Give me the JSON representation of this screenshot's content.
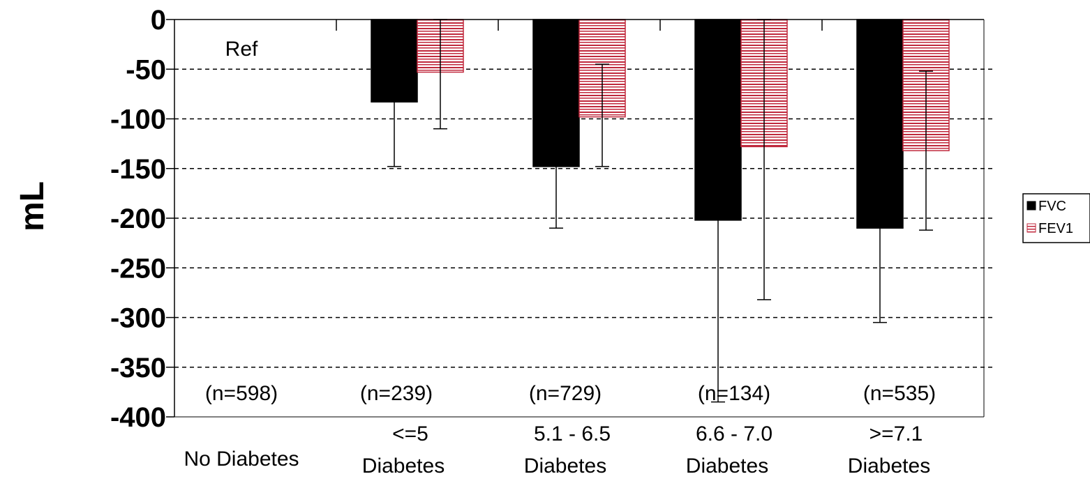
{
  "chart_data": {
    "type": "bar",
    "title": "",
    "xlabel": "",
    "ylabel": "mL",
    "ylim": [
      -400,
      0
    ],
    "yticks": [
      0,
      -50,
      -100,
      -150,
      -200,
      -250,
      -300,
      -350,
      -400
    ],
    "ytick_labels": [
      "0",
      "-50",
      "-100",
      "-150",
      "-200",
      "-250",
      "-300",
      "-350",
      "-400"
    ],
    "grid": "horizontal dashed",
    "legend_position": "right",
    "categories": [
      [
        "No Diabetes"
      ],
      [
        "<=5",
        "Diabetes"
      ],
      [
        "5.1 - 6.5",
        "Diabetes"
      ],
      [
        "6.6 - 7.0",
        "Diabetes"
      ],
      [
        ">=7.1",
        "Diabetes"
      ]
    ],
    "sample_sizes": [
      "(n=598)",
      "(n=239)",
      "(n=729)",
      "(n=134)",
      "(n=535)"
    ],
    "reference_label": "Ref",
    "series": [
      {
        "name": "FVC",
        "color": "#000000",
        "fill": "solid",
        "values": [
          0,
          -83,
          -148,
          -202,
          -210
        ],
        "ci_low": [
          null,
          -148,
          -210,
          -385,
          -305
        ],
        "ci_high": [
          null,
          null,
          null,
          null,
          null
        ]
      },
      {
        "name": "FEV1",
        "color": "#c0283c",
        "fill": "horizontal-stripes",
        "values": [
          0,
          -53,
          -98,
          -128,
          -132
        ],
        "ci_low": [
          null,
          -110,
          -148,
          -282,
          -212
        ],
        "ci_high": [
          null,
          0,
          -45,
          0,
          -52
        ]
      }
    ]
  }
}
